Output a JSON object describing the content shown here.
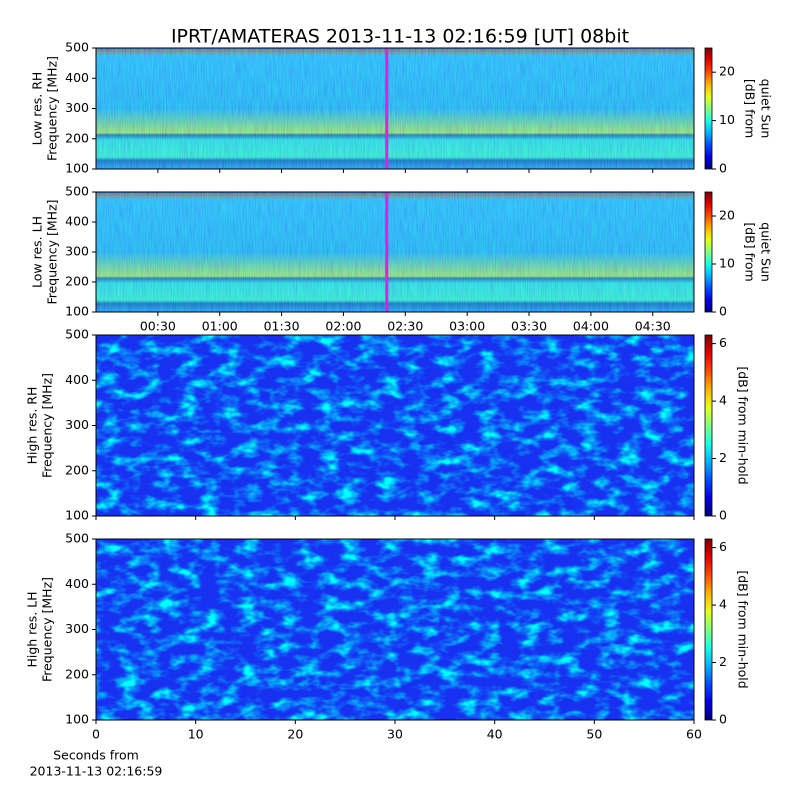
{
  "chart_data": [
    {
      "type": "heatmap",
      "title": "IPRT/AMATERAS 2013-11-13 02:16:59 [UT]   08bit",
      "ylabel": [
        "Low res. RH",
        "Frequency [MHz]"
      ],
      "ylim": [
        100,
        500
      ],
      "yticks": [
        100,
        200,
        300,
        400,
        500
      ],
      "xlim": [
        0,
        290
      ],
      "xticks": [
        30,
        60,
        90,
        120,
        150,
        180,
        210,
        240,
        270
      ],
      "xticklabels": false,
      "cursor": {
        "x": 141,
        "color": "#e020e0"
      },
      "colormap": "jet",
      "clim": [
        0,
        25
      ],
      "cticks": [
        0,
        10,
        20
      ],
      "colorbar_label": [
        "[dB] from",
        "quiet Sun"
      ]
    },
    {
      "type": "heatmap",
      "ylabel": [
        "Low res. LH",
        "Frequency [MHz]"
      ],
      "ylim": [
        100,
        500
      ],
      "yticks": [
        100,
        200,
        300,
        400,
        500
      ],
      "xlim": [
        0,
        290
      ],
      "xticks": [
        {
          "value": 30,
          "label": "00:30"
        },
        {
          "value": 60,
          "label": "01:00"
        },
        {
          "value": 90,
          "label": "01:30"
        },
        {
          "value": 120,
          "label": "02:00"
        },
        {
          "value": 150,
          "label": "02:30"
        },
        {
          "value": 180,
          "label": "03:00"
        },
        {
          "value": 210,
          "label": "03:30"
        },
        {
          "value": 240,
          "label": "04:00"
        },
        {
          "value": 270,
          "label": "04:30"
        }
      ],
      "xticklabels": true,
      "cursor": {
        "x": 141,
        "color": "#e020e0"
      },
      "colormap": "jet",
      "clim": [
        0,
        25
      ],
      "cticks": [
        0,
        10,
        20
      ],
      "colorbar_label": [
        "[dB] from",
        "quiet Sun"
      ]
    },
    {
      "type": "heatmap",
      "ylabel": [
        "High res. RH",
        "Frequency [MHz]"
      ],
      "ylim": [
        100,
        500
      ],
      "yticks": [
        100,
        200,
        300,
        400,
        500
      ],
      "xlim": [
        0,
        60
      ],
      "xticks": [
        0,
        10,
        20,
        30,
        40,
        50,
        60
      ],
      "xticklabels": false,
      "colormap": "jet",
      "clim": [
        0,
        6.3
      ],
      "cticks": [
        0,
        2,
        4,
        6
      ],
      "colorbar_label": [
        "[dB] from min-hold"
      ]
    },
    {
      "type": "heatmap",
      "ylabel": [
        "High res. LH",
        "Frequency [MHz]"
      ],
      "ylim": [
        100,
        500
      ],
      "yticks": [
        100,
        200,
        300,
        400,
        500
      ],
      "xlim": [
        0,
        60
      ],
      "xticks": [
        0,
        10,
        20,
        30,
        40,
        50,
        60
      ],
      "xticklabels": true,
      "xlabel": [
        "Seconds from",
        "2013-11-13 02:16:59"
      ],
      "colormap": "jet",
      "clim": [
        0,
        6.3
      ],
      "cticks": [
        0,
        2,
        4,
        6
      ],
      "colorbar_label": [
        "[dB] from min-hold"
      ]
    }
  ]
}
